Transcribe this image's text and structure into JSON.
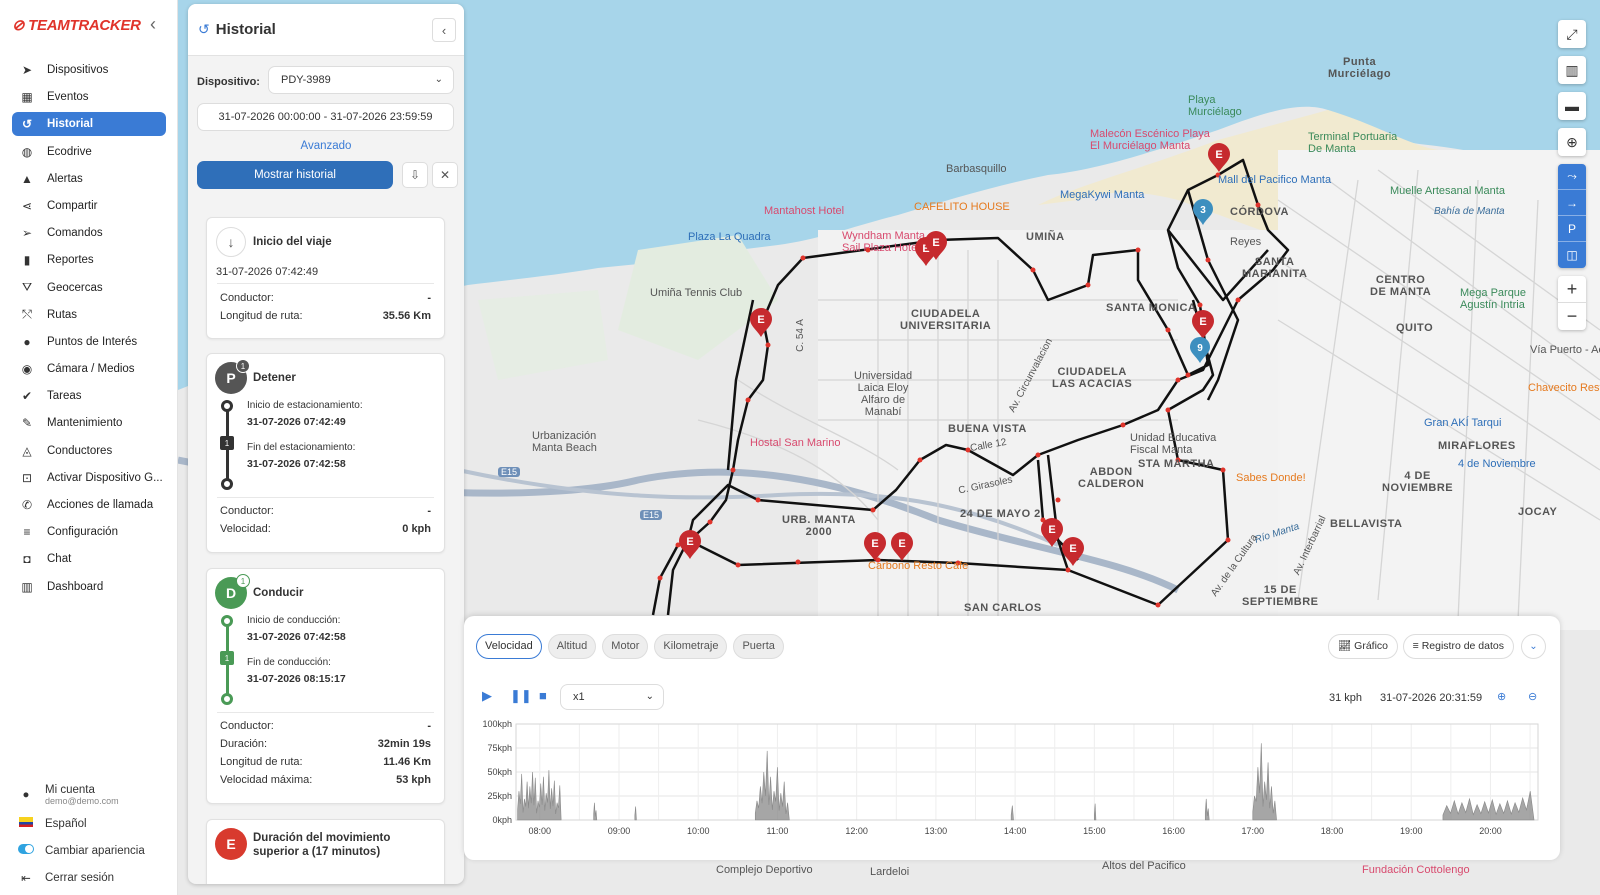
{
  "app": {
    "logo": "TEAMTRACKER"
  },
  "sidebar": {
    "items": [
      {
        "label": "Dispositivos",
        "icon": "navigation-arrow-icon",
        "glyph": "➤",
        "active": false
      },
      {
        "label": "Eventos",
        "icon": "calendar-icon",
        "glyph": "▦",
        "active": false
      },
      {
        "label": "Historial",
        "icon": "history-icon",
        "glyph": "↺",
        "active": true
      },
      {
        "label": "Ecodrive",
        "icon": "gauge-icon",
        "glyph": "◍",
        "active": false
      },
      {
        "label": "Alertas",
        "icon": "bell-icon",
        "glyph": "▲",
        "active": false
      },
      {
        "label": "Compartir",
        "icon": "share-icon",
        "glyph": "⋖",
        "active": false
      },
      {
        "label": "Comandos",
        "icon": "send-icon",
        "glyph": "➢",
        "active": false
      },
      {
        "label": "Reportes",
        "icon": "bar-chart-icon",
        "glyph": "▮",
        "active": false
      },
      {
        "label": "Geocercas",
        "icon": "geofence-icon",
        "glyph": "⛛",
        "active": false
      },
      {
        "label": "Rutas",
        "icon": "route-icon",
        "glyph": "⤲",
        "active": false
      },
      {
        "label": "Puntos de Interés",
        "icon": "map-pin-icon",
        "glyph": "●",
        "active": false
      },
      {
        "label": "Cámara / Medios",
        "icon": "camera-icon",
        "glyph": "◉",
        "active": false
      },
      {
        "label": "Tareas",
        "icon": "tasks-check-icon",
        "glyph": "✔",
        "active": false
      },
      {
        "label": "Mantenimiento",
        "icon": "wrench-icon",
        "glyph": "✎",
        "active": false
      },
      {
        "label": "Conductores",
        "icon": "bell-outline-icon",
        "glyph": "◬",
        "active": false
      },
      {
        "label": "Activar Dispositivo G...",
        "icon": "device-activate-icon",
        "glyph": "⊡",
        "active": false
      },
      {
        "label": "Acciones de llamada",
        "icon": "phone-icon",
        "glyph": "✆",
        "active": false
      },
      {
        "label": "Configuración",
        "icon": "settings-sliders-icon",
        "glyph": "≡",
        "active": false
      },
      {
        "label": "Chat",
        "icon": "chat-icon",
        "glyph": "◘",
        "active": false
      },
      {
        "label": "Dashboard",
        "icon": "dashboard-icon",
        "glyph": "▥",
        "active": false
      }
    ],
    "account": {
      "label": "Mi cuenta",
      "email": "demo@demo.com"
    },
    "language": "Español",
    "appearance": "Cambiar apariencia",
    "logout": "Cerrar sesión"
  },
  "panel": {
    "title": "Historial",
    "device_label": "Dispositivo:",
    "device_value": "PDY-3989",
    "date_range": "31-07-2026 00:00:00 - 31-07-2026 23:59:59",
    "advanced": "Avanzado",
    "show_button": "Mostrar historial",
    "trip_start": {
      "title": "Inicio del viaje",
      "datetime": "31-07-2026 07:42:49",
      "driver_label": "Conductor:",
      "driver_value": "-",
      "route_label": "Longitud de ruta:",
      "route_value": "35.56 Km"
    },
    "stop": {
      "title": "Detener",
      "badge": "P",
      "count": "1",
      "start_label": "Inicio de estacionamiento:",
      "start_value": "31-07-2026 07:42:49",
      "step": "1",
      "end_label": "Fin del estacionamiento:",
      "end_value": "31-07-2026 07:42:58",
      "driver_label": "Conductor:",
      "driver_value": "-",
      "speed_label": "Velocidad:",
      "speed_value": "0 kph"
    },
    "drive": {
      "title": "Conducir",
      "badge": "D",
      "count": "1",
      "start_label": "Inicio de conducción:",
      "start_value": "31-07-2026 07:42:58",
      "step": "1",
      "end_label": "Fin de conducción:",
      "end_value": "31-07-2026 08:15:17",
      "driver_label": "Conductor:",
      "driver_value": "-",
      "duration_label": "Duración:",
      "duration_value": "32min 19s",
      "route_label": "Longitud de ruta:",
      "route_value": "11.46 Km",
      "maxspeed_label": "Velocidad máxima:",
      "maxspeed_value": "53 kph"
    },
    "event": {
      "badge": "E",
      "title": "Duración del movimiento superior a (17 minutos)"
    }
  },
  "map_labels": {
    "punta": "Punta\nMurciélago",
    "playa_murcielago": "Playa\nMurciélago",
    "malecon": "Malecón Escénico Playa\nEl Murciélago Manta",
    "terminal": "Terminal Portuaria\nDe Manta",
    "barbasquillo": "Barbasquillo",
    "megakywi": "MegaKywi Manta",
    "mall": "Mall del Pacifico Manta",
    "muelle": "Muelle Artesanal Manta",
    "bahia": "Bahía de Manta",
    "mantahost": "Mantahost Hotel",
    "cafelito": "CAFELITO HOUSE",
    "cordova": "CÓRDOVA",
    "plaza_quadra": "Plaza La Quadra",
    "wyndham": "Wyndham Manta\nSail Plaza Hotel",
    "umina": "UMIÑA",
    "reyes": "Reyes",
    "santa_marianita": "SANTA\nMARIANITA",
    "centro": "CENTRO\nDE MANTA",
    "mega_parque": "Mega Parque\nAgustín Intria",
    "umina_tennis": "Umiña Tennis Club",
    "ciudadela_univ": "CIUDADELA\nUNIVERSITARIA",
    "santa_monica": "SANTA MONICA",
    "quito": "QUITO",
    "via_puerto": "Vía Puerto - Ae",
    "universidad": "Universidad\nLaica Eloy\nAlfaro de\nManabí",
    "las_acacias": "CIUDADELA\nLAS ACACIAS",
    "chavecito": "Chavecito Restau",
    "urbanizacion": "Urbanización\nManta Beach",
    "hostal": "Hostal San Marino",
    "buena_vista": "BUENA VISTA",
    "unidad_educativa": "Unidad Educativa\nFiscal Manta",
    "gran_aki": "Gran AKÍ Tarqui",
    "miraflores": "MIRAFLORES",
    "cuatro_noviembre": "4 de Noviembre",
    "abdon": "ABDON\nCALDERON",
    "sta_martha": "STA MARTHA",
    "sabes_donde": "Sabes Donde!",
    "cuatro_nov2": "4 DE\nNOVIEMBRE",
    "urb_manta": "URB. MANTA\n2000",
    "veinticuatro": "24 DE MAYO 2",
    "bellavista": "BELLAVISTA",
    "jocay": "JOCAY",
    "carbono": "Carbono Resto Cafe",
    "san_carlos": "SAN CARLOS",
    "quince_sep": "15 DE\nSEPTIEMBRE",
    "rio_manta": "Río Manta",
    "altos": "Altos del Pacifico",
    "complejo": "Complejo Deportivo",
    "fundacion": "Fundación Cottolengo",
    "lardeloi": "Lardeloi",
    "av_circunvalacion": "Av. Circunvalacion",
    "calle12": "Calle 12",
    "c_girasoles": "C. Girasoles",
    "av_cultura": "Av. de la Cultura",
    "av_interbarrial": "Av. Interbarrial",
    "c54a": "C. 54 A",
    "e15": "E15"
  },
  "map_markers": {
    "event_label": "E",
    "blue_3": "3",
    "blue_9": "9"
  },
  "map_controls": [
    "expand-icon",
    "map-layers-icon",
    "ruler-icon",
    "locate-icon"
  ],
  "map_toggle_group": [
    "route-toggle-icon",
    "arrow-toggle-icon",
    "parking-toggle-icon",
    "event-toggle-icon"
  ],
  "bottom": {
    "tabs": [
      {
        "label": "Velocidad",
        "active": true
      },
      {
        "label": "Altitud",
        "active": false
      },
      {
        "label": "Motor",
        "active": false
      },
      {
        "label": "Kilometraje",
        "active": false
      },
      {
        "label": "Puerta",
        "active": false
      }
    ],
    "chart_button": "Gráfico",
    "log_button": "Registro de datos",
    "playback_speed": "x1",
    "current_speed": "31 kph",
    "current_time": "31-07-2026 20:31:59"
  },
  "chart_data": {
    "type": "area",
    "title": "",
    "xlabel": "",
    "ylabel": "",
    "x_ticks": [
      "08:00",
      "09:00",
      "10:00",
      "11:00",
      "12:00",
      "13:00",
      "14:00",
      "15:00",
      "16:00",
      "17:00",
      "18:00",
      "19:00",
      "20:00"
    ],
    "y_ticks": [
      "0kph",
      "25kph",
      "50kph",
      "75kph",
      "100kph"
    ],
    "ylim": [
      0,
      100
    ],
    "xlim_hours": [
      7.7,
      20.6
    ],
    "series": [
      {
        "name": "",
        "color": "#888888",
        "bursts": [
          {
            "start": 7.72,
            "end": 8.27,
            "peaks": [
              30,
              48,
              22,
              40,
              35,
              50,
              44,
              20,
              38,
              45,
              28,
              52,
              33,
              41,
              18,
              36
            ]
          },
          {
            "start": 8.68,
            "end": 8.72,
            "peaks": [
              18,
              10
            ]
          },
          {
            "start": 9.2,
            "end": 9.22,
            "peaks": [
              14
            ]
          },
          {
            "start": 10.72,
            "end": 11.15,
            "peaks": [
              20,
              35,
              50,
              72,
              45,
              30,
              55,
              28,
              40,
              18
            ]
          },
          {
            "start": 13.95,
            "end": 13.98,
            "peaks": [
              15
            ]
          },
          {
            "start": 15.0,
            "end": 15.02,
            "peaks": [
              17
            ]
          },
          {
            "start": 16.4,
            "end": 16.45,
            "peaks": [
              22,
              12
            ]
          },
          {
            "start": 17.0,
            "end": 17.3,
            "peaks": [
              25,
              55,
              80,
              40,
              60,
              35,
              20
            ]
          },
          {
            "start": 19.4,
            "end": 20.55,
            "peaks": [
              15,
              20,
              18,
              22,
              16,
              19,
              21,
              17,
              20,
              18,
              23,
              30
            ]
          }
        ]
      }
    ]
  }
}
